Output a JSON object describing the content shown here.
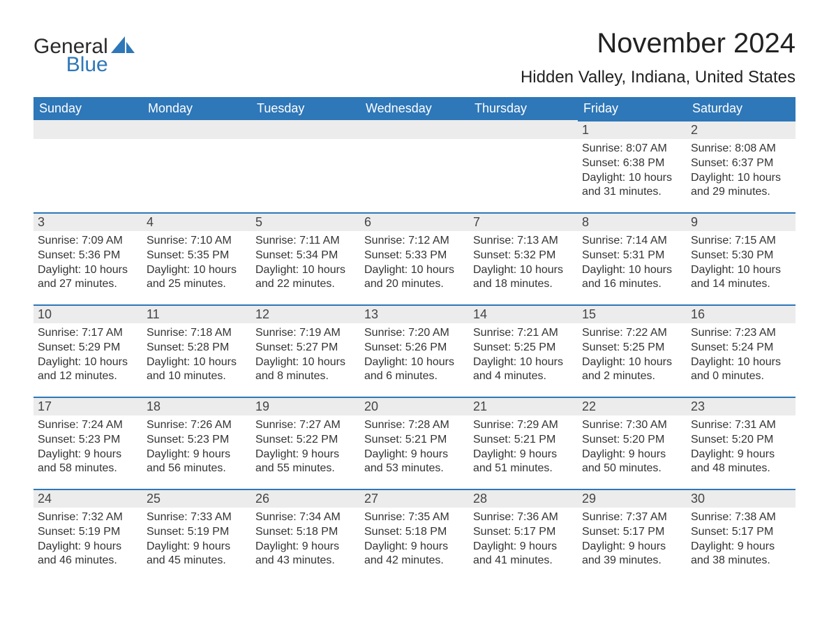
{
  "logo": {
    "word1": "General",
    "word2": "Blue"
  },
  "colors": {
    "brand_blue": "#2e77b8",
    "header_text": "#ffffff",
    "daynum_bg": "#ececec",
    "text": "#333333",
    "page_bg": "#ffffff"
  },
  "fonts": {
    "base_family": "Arial, Helvetica, sans-serif",
    "title_pt": 40,
    "location_pt": 24,
    "th_pt": 18,
    "day_pt": 18,
    "body_pt": 16
  },
  "title": "November 2024",
  "location": "Hidden Valley, Indiana, United States",
  "weekdays": [
    "Sunday",
    "Monday",
    "Tuesday",
    "Wednesday",
    "Thursday",
    "Friday",
    "Saturday"
  ],
  "grid": {
    "rows": 5,
    "cols": 7,
    "start_weekday_index": 5,
    "days_in_month": 30
  },
  "days": {
    "1": {
      "sunrise": "8:07 AM",
      "sunset": "6:38 PM",
      "daylight": "10 hours and 31 minutes."
    },
    "2": {
      "sunrise": "8:08 AM",
      "sunset": "6:37 PM",
      "daylight": "10 hours and 29 minutes."
    },
    "3": {
      "sunrise": "7:09 AM",
      "sunset": "5:36 PM",
      "daylight": "10 hours and 27 minutes."
    },
    "4": {
      "sunrise": "7:10 AM",
      "sunset": "5:35 PM",
      "daylight": "10 hours and 25 minutes."
    },
    "5": {
      "sunrise": "7:11 AM",
      "sunset": "5:34 PM",
      "daylight": "10 hours and 22 minutes."
    },
    "6": {
      "sunrise": "7:12 AM",
      "sunset": "5:33 PM",
      "daylight": "10 hours and 20 minutes."
    },
    "7": {
      "sunrise": "7:13 AM",
      "sunset": "5:32 PM",
      "daylight": "10 hours and 18 minutes."
    },
    "8": {
      "sunrise": "7:14 AM",
      "sunset": "5:31 PM",
      "daylight": "10 hours and 16 minutes."
    },
    "9": {
      "sunrise": "7:15 AM",
      "sunset": "5:30 PM",
      "daylight": "10 hours and 14 minutes."
    },
    "10": {
      "sunrise": "7:17 AM",
      "sunset": "5:29 PM",
      "daylight": "10 hours and 12 minutes."
    },
    "11": {
      "sunrise": "7:18 AM",
      "sunset": "5:28 PM",
      "daylight": "10 hours and 10 minutes."
    },
    "12": {
      "sunrise": "7:19 AM",
      "sunset": "5:27 PM",
      "daylight": "10 hours and 8 minutes."
    },
    "13": {
      "sunrise": "7:20 AM",
      "sunset": "5:26 PM",
      "daylight": "10 hours and 6 minutes."
    },
    "14": {
      "sunrise": "7:21 AM",
      "sunset": "5:25 PM",
      "daylight": "10 hours and 4 minutes."
    },
    "15": {
      "sunrise": "7:22 AM",
      "sunset": "5:25 PM",
      "daylight": "10 hours and 2 minutes."
    },
    "16": {
      "sunrise": "7:23 AM",
      "sunset": "5:24 PM",
      "daylight": "10 hours and 0 minutes."
    },
    "17": {
      "sunrise": "7:24 AM",
      "sunset": "5:23 PM",
      "daylight": "9 hours and 58 minutes."
    },
    "18": {
      "sunrise": "7:26 AM",
      "sunset": "5:23 PM",
      "daylight": "9 hours and 56 minutes."
    },
    "19": {
      "sunrise": "7:27 AM",
      "sunset": "5:22 PM",
      "daylight": "9 hours and 55 minutes."
    },
    "20": {
      "sunrise": "7:28 AM",
      "sunset": "5:21 PM",
      "daylight": "9 hours and 53 minutes."
    },
    "21": {
      "sunrise": "7:29 AM",
      "sunset": "5:21 PM",
      "daylight": "9 hours and 51 minutes."
    },
    "22": {
      "sunrise": "7:30 AM",
      "sunset": "5:20 PM",
      "daylight": "9 hours and 50 minutes."
    },
    "23": {
      "sunrise": "7:31 AM",
      "sunset": "5:20 PM",
      "daylight": "9 hours and 48 minutes."
    },
    "24": {
      "sunrise": "7:32 AM",
      "sunset": "5:19 PM",
      "daylight": "9 hours and 46 minutes."
    },
    "25": {
      "sunrise": "7:33 AM",
      "sunset": "5:19 PM",
      "daylight": "9 hours and 45 minutes."
    },
    "26": {
      "sunrise": "7:34 AM",
      "sunset": "5:18 PM",
      "daylight": "9 hours and 43 minutes."
    },
    "27": {
      "sunrise": "7:35 AM",
      "sunset": "5:18 PM",
      "daylight": "9 hours and 42 minutes."
    },
    "28": {
      "sunrise": "7:36 AM",
      "sunset": "5:17 PM",
      "daylight": "9 hours and 41 minutes."
    },
    "29": {
      "sunrise": "7:37 AM",
      "sunset": "5:17 PM",
      "daylight": "9 hours and 39 minutes."
    },
    "30": {
      "sunrise": "7:38 AM",
      "sunset": "5:17 PM",
      "daylight": "9 hours and 38 minutes."
    }
  },
  "labels": {
    "sunrise": "Sunrise",
    "sunset": "Sunset",
    "daylight": "Daylight"
  }
}
